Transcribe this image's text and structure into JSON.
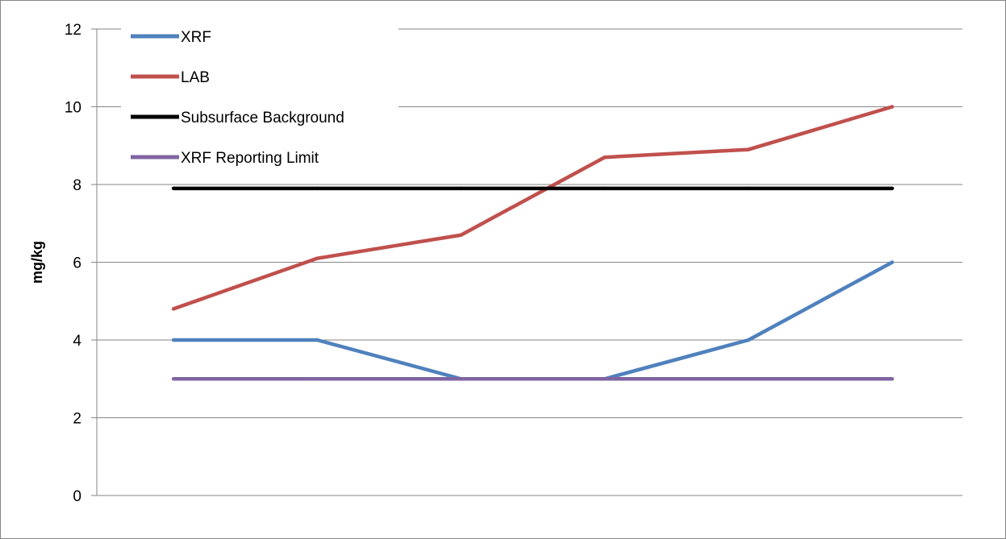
{
  "chart_data": {
    "type": "line",
    "title": "",
    "xlabel": "",
    "ylabel": "mg/kg",
    "x": [
      1,
      2,
      3,
      4,
      5,
      6
    ],
    "ylim": [
      0,
      12
    ],
    "yticks": [
      "0",
      "2",
      "4",
      "6",
      "8",
      "10",
      "12"
    ],
    "grid": true,
    "legend_position": "top-left",
    "series": [
      {
        "name": "XRF",
        "values": [
          4,
          4,
          3,
          3,
          4,
          6
        ],
        "color": "#4f81bd"
      },
      {
        "name": "LAB",
        "values": [
          4.8,
          6.1,
          6.7,
          8.7,
          8.9,
          10
        ],
        "color": "#c0504d"
      },
      {
        "name": "Subsurface Background",
        "values": [
          7.9,
          7.9,
          7.9,
          7.9,
          7.9,
          7.9
        ],
        "color": "#000000"
      },
      {
        "name": "XRF Reporting Limit",
        "values": [
          3,
          3,
          3,
          3,
          3,
          3
        ],
        "color": "#8064a2"
      }
    ]
  }
}
